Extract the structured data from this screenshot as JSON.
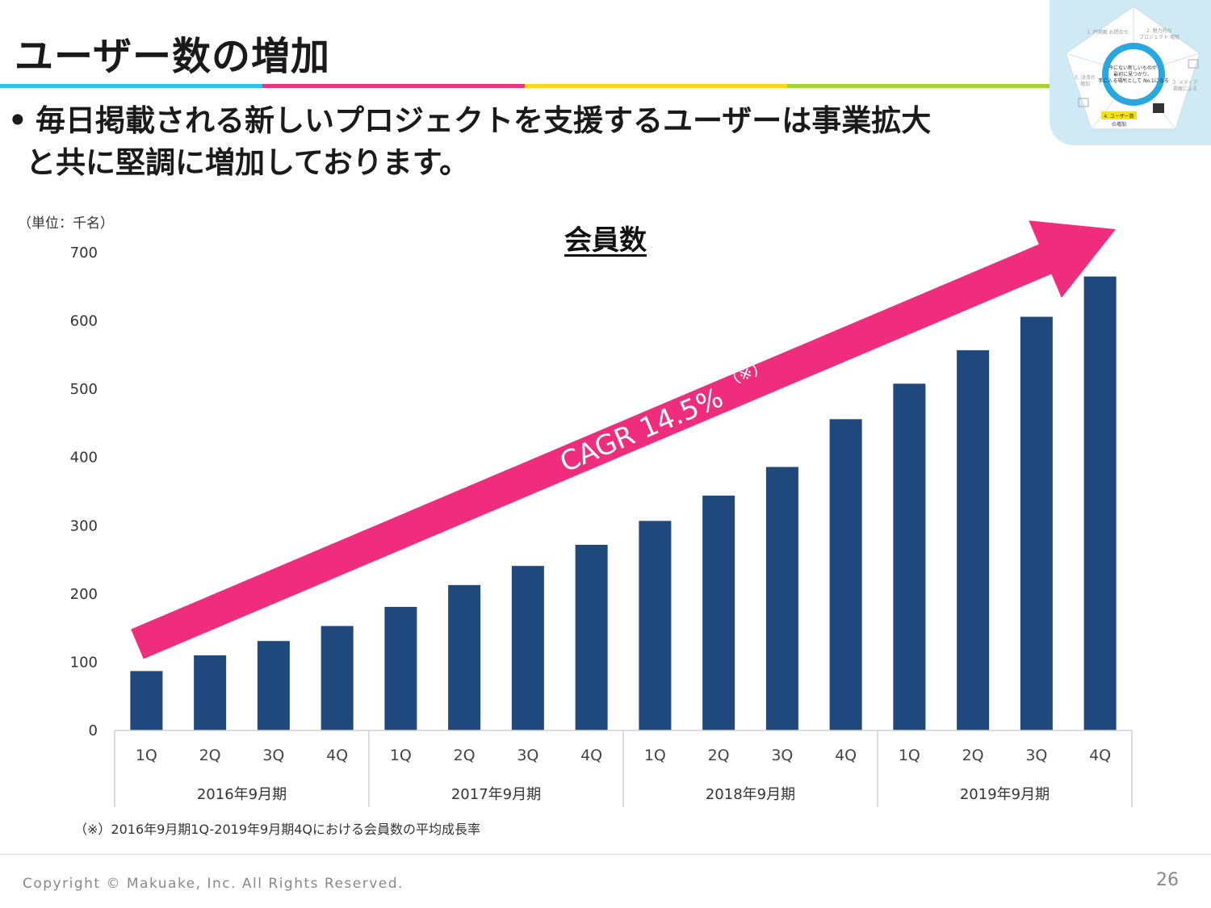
{
  "header": {
    "title": "ユーザー数の増加",
    "rule_colors": [
      "#33c3ea",
      "#e8357b",
      "#f5d71c",
      "#a6d23a"
    ]
  },
  "bullet": {
    "marker": "•",
    "line1": "毎日掲載される新しいプロジェクトを支援するユーザーは事業拡大",
    "line2": "と共に堅調に増加しております。"
  },
  "thumbnail": {
    "center_text": "今にない新しいものが 最初に見つかり、 手に入る場所として No.1になる",
    "items": [
      "1. 円掲載 お問合せ",
      "2. 魅力的な プロジェクト 増殖",
      "3. メディア 掲載による 認知度の向上",
      "4. ユーザー数 の増加",
      "5. 決済の 増加"
    ],
    "accent": "#29a8e0",
    "highlight": "#f5e21c"
  },
  "chart_data": {
    "type": "bar",
    "title": "会員数",
    "unit_label": "（単位：千名）",
    "ylim": [
      0,
      700
    ],
    "yticks": [
      0,
      100,
      200,
      300,
      400,
      500,
      600,
      700
    ],
    "categories": [
      "1Q",
      "2Q",
      "3Q",
      "4Q",
      "1Q",
      "2Q",
      "3Q",
      "4Q",
      "1Q",
      "2Q",
      "3Q",
      "4Q",
      "1Q",
      "2Q",
      "3Q",
      "4Q"
    ],
    "groups": [
      "2016年9月期",
      "2017年9月期",
      "2018年9月期",
      "2019年9月期"
    ],
    "values": [
      87,
      110,
      131,
      153,
      181,
      213,
      241,
      272,
      307,
      344,
      386,
      456,
      508,
      557,
      606,
      665
    ],
    "bar_color": "#1f497d",
    "annotation": {
      "text": "CAGR 14.5%",
      "suffix": "（※）",
      "color": "#f02d7d"
    },
    "grid": false,
    "legend": "none"
  },
  "footnote": "（※）2016年9月期1Q-2019年9月期4Qにおける会員数の平均成長率",
  "footer": {
    "copyright": "Copyright © Makuake, Inc. All Rights Reserved.",
    "page_number": "26"
  }
}
